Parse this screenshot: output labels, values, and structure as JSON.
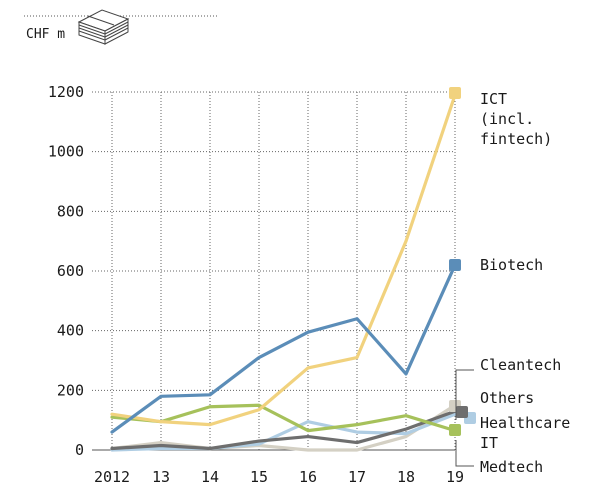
{
  "unit_label": "CHF m",
  "unit_icon": "stack-of-banknotes-icon",
  "chart_data": {
    "type": "line",
    "x": [
      "2012",
      "13",
      "14",
      "15",
      "16",
      "17",
      "18",
      "19"
    ],
    "ylim": [
      0,
      1200
    ],
    "yticks": [
      "0",
      "200",
      "400",
      "600",
      "800",
      "1000",
      "1200"
    ],
    "grid": "dotted horizontal and vertical",
    "series": [
      {
        "name": "ICT (incl. fintech)",
        "label_lines": [
          "ICT",
          "(incl.",
          "fintech)"
        ],
        "color": "#f1d27e",
        "values": [
          120,
          95,
          85,
          135,
          275,
          310,
          700,
          1190
        ]
      },
      {
        "name": "Biotech",
        "label_lines": [
          "Biotech"
        ],
        "color": "#5b8db8",
        "values": [
          60,
          180,
          185,
          310,
          395,
          440,
          255,
          620
        ]
      },
      {
        "name": "Cleantech",
        "label_lines": [
          "Cleantech"
        ],
        "color": "#a6c15b",
        "values": [
          110,
          95,
          145,
          150,
          65,
          85,
          115,
          65
        ]
      },
      {
        "name": "Others",
        "label_lines": [
          "Others"
        ],
        "color": "#d4d0c4",
        "values": [
          5,
          25,
          5,
          15,
          0,
          0,
          45,
          150
        ]
      },
      {
        "name": "Healthcare IT",
        "label_lines": [
          "Healthcare",
          "IT"
        ],
        "color": "#afcde3",
        "values": [
          0,
          5,
          5,
          20,
          95,
          60,
          55,
          120
        ]
      },
      {
        "name": "Medtech",
        "label_lines": [
          "Medtech"
        ],
        "color": "#6e6e6e",
        "values": [
          5,
          15,
          5,
          30,
          45,
          25,
          70,
          130
        ]
      }
    ]
  }
}
